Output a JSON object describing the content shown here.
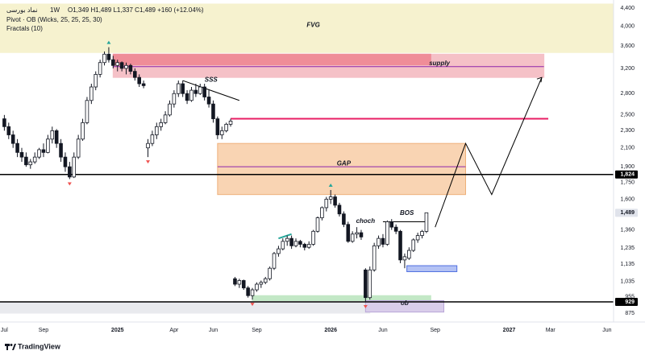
{
  "chart_data": {
    "type": "candlestick",
    "header": {
      "symbol": "نماد بورسی",
      "interval": "1W",
      "ohlc": "O1,349 H1,489 L1,337 C1,489 +160 (+12.04%)",
      "indicators": [
        "Pivot · OB (Wicks, 25, 25, 25, 30)",
        "Fractals (10)"
      ]
    },
    "footer": "TradingView",
    "log_scale": true,
    "ylim": [
      842,
      4500
    ],
    "yticks": [
      {
        "value": 4400,
        "label": "4,400"
      },
      {
        "value": 4000,
        "label": "4,000"
      },
      {
        "value": 3600,
        "label": "3,600"
      },
      {
        "value": 3200,
        "label": "3,200"
      },
      {
        "value": 2800,
        "label": "2,800"
      },
      {
        "value": 2500,
        "label": "2,500"
      },
      {
        "value": 2300,
        "label": "2,300"
      },
      {
        "value": 2100,
        "label": "2,100"
      },
      {
        "value": 1900,
        "label": "1,900"
      },
      {
        "value": 1750,
        "label": "1,750"
      },
      {
        "value": 1600,
        "label": "1,600"
      },
      {
        "value": 1360,
        "label": "1,360"
      },
      {
        "value": 1235,
        "label": "1,235"
      },
      {
        "value": 1135,
        "label": "1,135"
      },
      {
        "value": 1035,
        "label": "1,035"
      },
      955,
      875
    ],
    "xlim": [
      0,
      141
    ],
    "xticks": [
      {
        "value": 1,
        "label": "Jul"
      },
      {
        "value": 10,
        "label": "Sep"
      },
      {
        "value": 27,
        "label": "2025"
      },
      {
        "value": 40,
        "label": "Apr"
      },
      {
        "value": 49,
        "label": "Jun"
      },
      {
        "value": 59,
        "label": "Sep"
      },
      {
        "value": 76,
        "label": "2026"
      },
      {
        "value": 88,
        "label": "Jun"
      },
      {
        "value": 100,
        "label": "Sep"
      },
      {
        "value": 117,
        "label": "2027"
      },
      {
        "value": 126.5,
        "label": "Mar"
      },
      {
        "value": 139.5,
        "label": "Jun"
      }
    ],
    "price_labels": [
      {
        "value": 1824,
        "label": "1,824",
        "color": "#000000"
      },
      {
        "value": 1489,
        "label": "1,489",
        "color": "#e0e3eb"
      },
      {
        "value": 929,
        "label": "929",
        "color": "#000000"
      }
    ],
    "candles": {
      "x": [
        1,
        2,
        3,
        4,
        5,
        6,
        7,
        8,
        9,
        10,
        11,
        12,
        13,
        14,
        15,
        16,
        17,
        18,
        19,
        20,
        21,
        22,
        23,
        24,
        25,
        26,
        27,
        28,
        29,
        30,
        31,
        32,
        33,
        34,
        35,
        36,
        37,
        38,
        39,
        40,
        41,
        42,
        43,
        44,
        45,
        46,
        47,
        48,
        49,
        50,
        51,
        52,
        53,
        54,
        55,
        56,
        57,
        58,
        59,
        60,
        61,
        62,
        63,
        64,
        65,
        66,
        67,
        68,
        69,
        70,
        71,
        72,
        73,
        74,
        75,
        76,
        77,
        78,
        79,
        80,
        81,
        82,
        83,
        84,
        85,
        86,
        87,
        88,
        89,
        90,
        91,
        92,
        93,
        94,
        95,
        96,
        97,
        98
      ],
      "open": [
        2450,
        2350,
        2250,
        2150,
        2050,
        2000,
        1920,
        1950,
        2000,
        2080,
        2050,
        2200,
        2300,
        2150,
        2000,
        1900,
        1800,
        2000,
        2200,
        2400,
        2700,
        2900,
        3100,
        3300,
        3450,
        3350,
        3250,
        3300,
        3200,
        3250,
        3150,
        3050,
        2950,
        2100,
        2150,
        2250,
        2350,
        2400,
        2500,
        2650,
        2800,
        2950,
        2800,
        2700,
        2850,
        2800,
        2900,
        2750,
        2650,
        2450,
        2250,
        2300,
        2380,
        1050,
        1020,
        1040,
        1000,
        960,
        990,
        1020,
        1030,
        1050,
        1110,
        1200,
        1230,
        1280,
        1300,
        1250,
        1280,
        1260,
        1240,
        1260,
        1350,
        1450,
        1530,
        1600,
        1620,
        1550,
        1480,
        1400,
        1280,
        1330,
        1340,
        1100,
        950,
        1100,
        1250,
        1300,
        1260,
        1420,
        1380,
        1350,
        1160,
        1170,
        1220,
        1290,
        1320,
        1349
      ],
      "high": [
        2500,
        2400,
        2300,
        2200,
        2100,
        2050,
        1980,
        2050,
        2100,
        2150,
        2250,
        2350,
        2320,
        2200,
        2050,
        1950,
        2050,
        2250,
        2450,
        2750,
        2950,
        3150,
        3350,
        3500,
        3580,
        3420,
        3350,
        3320,
        3300,
        3280,
        3200,
        3100,
        3000,
        2200,
        2300,
        2400,
        2450,
        2550,
        2700,
        2850,
        3000,
        3000,
        2850,
        2900,
        2950,
        2950,
        2950,
        2850,
        2700,
        2480,
        2350,
        2400,
        2450,
        1060,
        1050,
        1045,
        1010,
        1000,
        1030,
        1040,
        1060,
        1120,
        1210,
        1250,
        1300,
        1320,
        1320,
        1300,
        1290,
        1270,
        1280,
        1360,
        1460,
        1540,
        1620,
        1680,
        1640,
        1570,
        1500,
        1420,
        1350,
        1380,
        1360,
        1110,
        1120,
        1270,
        1320,
        1330,
        1430,
        1440,
        1400,
        1360,
        1200,
        1240,
        1300,
        1340,
        1360,
        1489
      ],
      "low": [
        2300,
        2200,
        2100,
        2000,
        1950,
        1900,
        1880,
        1930,
        1980,
        2000,
        2040,
        2150,
        2100,
        1950,
        1850,
        1780,
        1790,
        1980,
        2180,
        2380,
        2650,
        2850,
        3050,
        3250,
        3300,
        3200,
        3150,
        3150,
        3100,
        3100,
        3000,
        2900,
        2880,
        2000,
        2120,
        2200,
        2300,
        2380,
        2480,
        2600,
        2750,
        2750,
        2650,
        2680,
        2750,
        2780,
        2700,
        2600,
        2400,
        2200,
        2200,
        2280,
        2350,
        1010,
        1000,
        990,
        950,
        940,
        980,
        1000,
        1020,
        1040,
        1100,
        1180,
        1220,
        1250,
        1230,
        1240,
        1240,
        1220,
        1230,
        1250,
        1340,
        1430,
        1500,
        1560,
        1530,
        1460,
        1380,
        1270,
        1270,
        1300,
        1290,
        929,
        940,
        1090,
        1230,
        1240,
        1250,
        1360,
        1330,
        1140,
        1110,
        1160,
        1210,
        1270,
        1300,
        1337
      ],
      "close": [
        2350,
        2250,
        2150,
        2050,
        2000,
        1920,
        1950,
        2000,
        2080,
        2050,
        2200,
        2300,
        2150,
        2000,
        1900,
        1800,
        2000,
        2200,
        2400,
        2700,
        2900,
        3100,
        3300,
        3450,
        3350,
        3250,
        3300,
        3200,
        3250,
        3150,
        3050,
        2950,
        2920,
        2150,
        2250,
        2350,
        2400,
        2500,
        2650,
        2800,
        2950,
        2800,
        2700,
        2850,
        2800,
        2900,
        2750,
        2650,
        2450,
        2250,
        2300,
        2380,
        2420,
        1020,
        1040,
        1000,
        960,
        990,
        1020,
        1030,
        1050,
        1110,
        1200,
        1230,
        1280,
        1300,
        1250,
        1280,
        1260,
        1240,
        1260,
        1350,
        1450,
        1530,
        1600,
        1620,
        1550,
        1480,
        1400,
        1280,
        1330,
        1340,
        1310,
        950,
        1100,
        1250,
        1300,
        1260,
        1420,
        1380,
        1350,
        1160,
        1180,
        1220,
        1290,
        1320,
        1349,
        1489
      ]
    },
    "zones": [
      {
        "start": 0,
        "end": 141,
        "low": 3480,
        "high": 4500,
        "color": "#f6f2cf",
        "border": "#f6f2cf"
      },
      {
        "start": 26,
        "end": 125,
        "low": 3050,
        "high": 3450,
        "color": "#f5c1c7",
        "border": "#f5c1c7"
      },
      {
        "start": 26,
        "end": 99,
        "low": 3260,
        "high": 3450,
        "color": "#ef8d98",
        "border": "#ef8d98"
      },
      {
        "start": 50,
        "end": 107,
        "low": 1640,
        "high": 2150,
        "color": "#f9d4b3",
        "border": "#eeb07a"
      },
      {
        "start": 0,
        "end": 85,
        "low": 875,
        "high": 929,
        "color": "#e9eaee",
        "border": "#e9eaee"
      },
      {
        "start": 58,
        "end": 99,
        "low": 935,
        "high": 960,
        "color": "#c3e8c6",
        "border": "#c3e8c6"
      },
      {
        "start": 84,
        "end": 102,
        "low": 880,
        "high": 935,
        "color": "#d9cdea",
        "border": "#b9a6d8"
      },
      {
        "start": 93.5,
        "end": 105,
        "low": 1090,
        "high": 1125,
        "color": "#b4c2f4",
        "border": "#4f6fe0"
      }
    ],
    "lines": [
      {
        "x": [
          26,
          125
        ],
        "values": [
          3230,
          3230
        ],
        "color": "#8e24aa",
        "width": 1
      },
      {
        "x": [
          53,
          126
        ],
        "values": [
          2450,
          2450
        ],
        "color": "#e91e63",
        "width": 2
      },
      {
        "x": [
          50,
          107
        ],
        "values": [
          1900,
          1900
        ],
        "color": "#8e24aa",
        "width": 1
      },
      {
        "x": [
          0,
          141
        ],
        "values": [
          1824,
          1824
        ],
        "color": "#000000",
        "width": 1.5
      },
      {
        "x": [
          0,
          141
        ],
        "values": [
          929,
          929
        ],
        "color": "#000000",
        "width": 1.5
      },
      {
        "x": [
          88,
          98
        ],
        "values": [
          1420,
          1420
        ],
        "color": "#000000",
        "width": 1
      },
      {
        "x": [
          64,
          67
        ],
        "values": [
          1300,
          1330
        ],
        "color": "#26a69a",
        "width": 2
      },
      {
        "x": [
          42,
          55
        ],
        "values": [
          3000,
          2700
        ],
        "color": "#000000",
        "width": 1
      },
      {
        "x": [
          100,
          107,
          113,
          124.5
        ],
        "values": [
          1380,
          2150,
          1640,
          3050
        ],
        "color": "#000000",
        "width": 1
      }
    ],
    "labels": [
      {
        "text": "FVG",
        "x": 72,
        "value": 3950
      },
      {
        "text": "supply",
        "x": 101,
        "value": 3230
      },
      {
        "text": "SSS",
        "x": 48.5,
        "value": 2960
      },
      {
        "text": "GAP",
        "x": 79,
        "value": 1900
      },
      {
        "text": "choch",
        "x": 84,
        "value": 1400
      },
      {
        "text": "BOS",
        "x": 93.5,
        "value": 1460
      },
      {
        "text": "ob",
        "x": 93,
        "value": 905
      }
    ],
    "fractals_up": {
      "x": [
        25,
        76
      ],
      "values": [
        3580,
        1680
      ]
    },
    "fractals_down": {
      "x": [
        16,
        34,
        58,
        84
      ],
      "values": [
        1780,
        2000,
        940,
        929
      ]
    }
  }
}
